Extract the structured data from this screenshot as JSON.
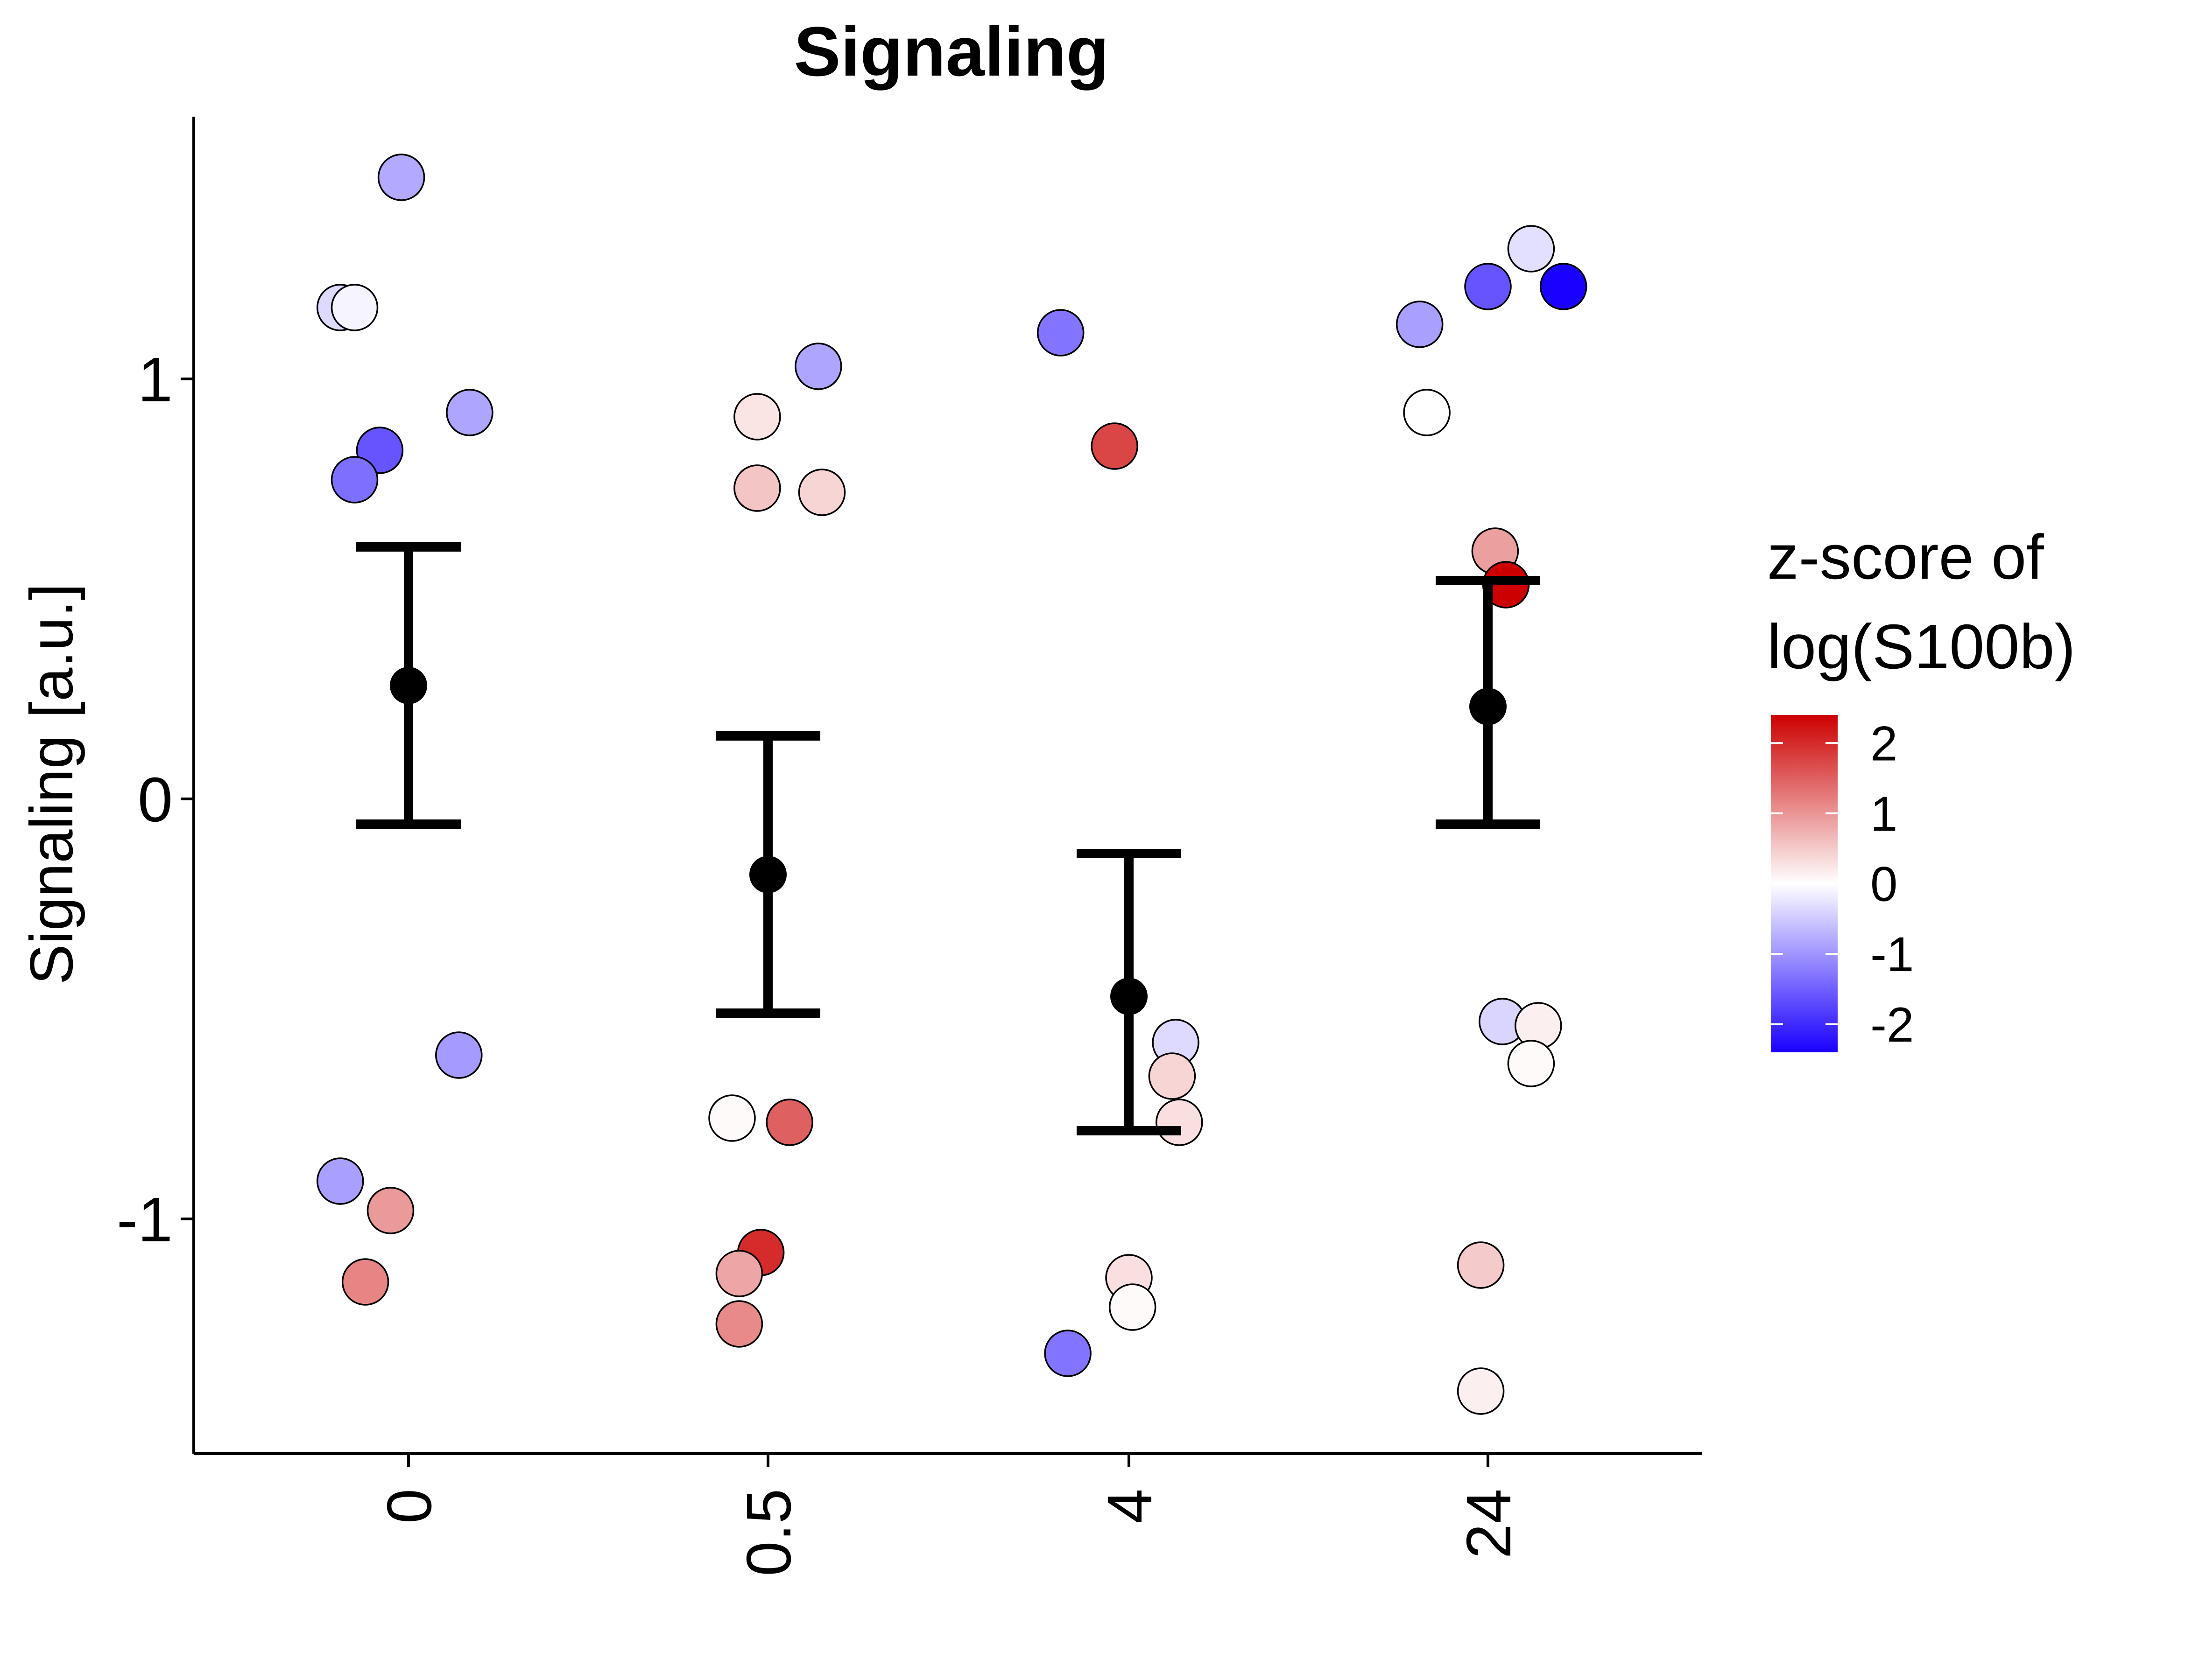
{
  "chart_data": {
    "type": "scatter",
    "title": "Signaling",
    "xlabel": "",
    "ylabel": "Signaling [a.u.]",
    "categories": [
      "0",
      "0.5",
      "4",
      "24"
    ],
    "ylim": [
      -1.56,
      1.63
    ],
    "yticks": [
      "1",
      "0",
      "-1"
    ],
    "ytick_values": [
      1,
      0,
      -1
    ],
    "grid": false,
    "legend": {
      "title_lines": [
        "z-score of",
        "log(S100b)"
      ],
      "ticks": [
        "2",
        "1",
        "0",
        "-1",
        "-2"
      ],
      "tick_values": [
        2,
        1,
        0,
        -1,
        -2
      ],
      "range": [
        -2.4,
        2.4
      ],
      "colors": {
        "low": "#1a00ff",
        "mid": "#ffffff",
        "high": "#cc0000"
      },
      "position": "right"
    },
    "summary": [
      {
        "category": "0",
        "mean": 0.27,
        "lower": -0.06,
        "upper": 0.6
      },
      {
        "category": "0.5",
        "mean": -0.18,
        "lower": -0.51,
        "upper": 0.15
      },
      {
        "category": "4",
        "mean": -0.47,
        "lower": -0.79,
        "upper": -0.13
      },
      {
        "category": "24",
        "mean": 0.22,
        "lower": -0.06,
        "upper": 0.52
      }
    ],
    "points": [
      {
        "category": "0",
        "jitter": -0.02,
        "y": 1.48,
        "z": -0.8
      },
      {
        "category": "0",
        "jitter": -0.19,
        "y": 1.17,
        "z": -0.35
      },
      {
        "category": "0",
        "jitter": -0.15,
        "y": 1.17,
        "z": -0.1
      },
      {
        "category": "0",
        "jitter": 0.17,
        "y": 0.92,
        "z": -0.85
      },
      {
        "category": "0",
        "jitter": -0.08,
        "y": 0.83,
        "z": -1.6
      },
      {
        "category": "0",
        "jitter": -0.15,
        "y": 0.76,
        "z": -1.35
      },
      {
        "category": "0",
        "jitter": 0.14,
        "y": -0.61,
        "z": -0.95
      },
      {
        "category": "0",
        "jitter": -0.19,
        "y": -0.91,
        "z": -0.9
      },
      {
        "category": "0",
        "jitter": -0.05,
        "y": -0.98,
        "z": 0.95
      },
      {
        "category": "0",
        "jitter": -0.12,
        "y": -1.15,
        "z": 1.15
      },
      {
        "category": "0.5",
        "jitter": 0.14,
        "y": 1.03,
        "z": -0.85
      },
      {
        "category": "0.5",
        "jitter": -0.03,
        "y": 0.91,
        "z": 0.25
      },
      {
        "category": "0.5",
        "jitter": -0.03,
        "y": 0.74,
        "z": 0.55
      },
      {
        "category": "0.5",
        "jitter": 0.15,
        "y": 0.73,
        "z": 0.4
      },
      {
        "category": "0.5",
        "jitter": -0.1,
        "y": -0.76,
        "z": 0.05
      },
      {
        "category": "0.5",
        "jitter": 0.06,
        "y": -0.77,
        "z": 1.5
      },
      {
        "category": "0.5",
        "jitter": -0.02,
        "y": -1.08,
        "z": 2.0
      },
      {
        "category": "0.5",
        "jitter": -0.08,
        "y": -1.13,
        "z": 0.85
      },
      {
        "category": "0.5",
        "jitter": -0.08,
        "y": -1.25,
        "z": 1.1
      },
      {
        "category": "4",
        "jitter": -0.19,
        "y": 1.11,
        "z": -1.3
      },
      {
        "category": "4",
        "jitter": -0.04,
        "y": 0.84,
        "z": 1.75
      },
      {
        "category": "4",
        "jitter": 0.13,
        "y": -0.58,
        "z": -0.35
      },
      {
        "category": "4",
        "jitter": 0.12,
        "y": -0.66,
        "z": 0.4
      },
      {
        "category": "4",
        "jitter": 0.14,
        "y": -0.77,
        "z": 0.3
      },
      {
        "category": "4",
        "jitter": 0.0,
        "y": -1.14,
        "z": 0.3
      },
      {
        "category": "4",
        "jitter": 0.01,
        "y": -1.21,
        "z": 0.05
      },
      {
        "category": "4",
        "jitter": -0.17,
        "y": -1.32,
        "z": -1.3
      },
      {
        "category": "24",
        "jitter": 0.12,
        "y": 1.31,
        "z": -0.3
      },
      {
        "category": "24",
        "jitter": 0.0,
        "y": 1.22,
        "z": -1.6
      },
      {
        "category": "24",
        "jitter": 0.21,
        "y": 1.22,
        "z": -2.4
      },
      {
        "category": "24",
        "jitter": -0.19,
        "y": 1.13,
        "z": -0.9
      },
      {
        "category": "24",
        "jitter": -0.17,
        "y": 0.92,
        "z": 0.0
      },
      {
        "category": "24",
        "jitter": 0.02,
        "y": 0.59,
        "z": 0.9
      },
      {
        "category": "24",
        "jitter": 0.05,
        "y": 0.51,
        "z": 2.4
      },
      {
        "category": "24",
        "jitter": 0.04,
        "y": -0.53,
        "z": -0.4
      },
      {
        "category": "24",
        "jitter": 0.14,
        "y": -0.54,
        "z": 0.15
      },
      {
        "category": "24",
        "jitter": 0.12,
        "y": -0.63,
        "z": 0.05
      },
      {
        "category": "24",
        "jitter": -0.02,
        "y": -1.11,
        "z": 0.5
      },
      {
        "category": "24",
        "jitter": -0.02,
        "y": -1.41,
        "z": 0.15
      }
    ]
  }
}
